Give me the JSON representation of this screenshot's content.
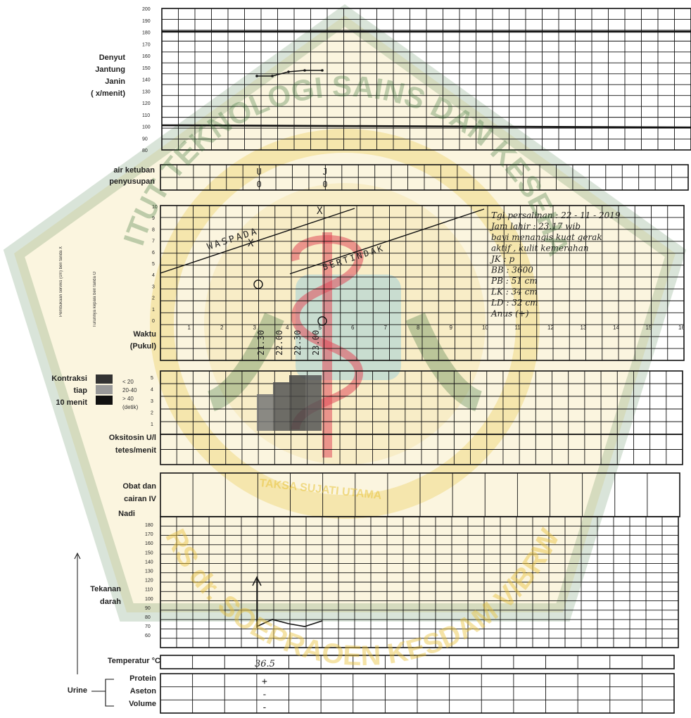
{
  "watermark": {
    "institution": "INSTITUT TEKNOLOGI SAINS DAN KESEHATAN",
    "hospital": "RS dr. SOEPRAOEN KESDAM V/BRW",
    "motto": "TAKSA SUJATI UTAMA",
    "colors": {
      "gold": "#e8c23a",
      "green": "#2f6b2f",
      "red": "#e04a5a",
      "blue": "#4fb4e8"
    }
  },
  "fetal_heart": {
    "label_lines": [
      "Denyut",
      "Jantung",
      "Janin",
      "(    x/menit)"
    ],
    "scale": [
      "200",
      "190",
      "180",
      "170",
      "160",
      "150",
      "140",
      "130",
      "120",
      "110",
      "100",
      "90",
      "80"
    ]
  },
  "amniotic": {
    "rows": [
      "air ketuban",
      "penyusupan"
    ],
    "entries": [
      {
        "col": 6,
        "ketuban": "U",
        "penyusupan": "0"
      },
      {
        "col": 10,
        "ketuban": "J",
        "penyusupan": "0"
      }
    ]
  },
  "cervix": {
    "scale": [
      "10",
      "9",
      "8",
      "7",
      "6",
      "5",
      "4",
      "3",
      "2",
      "1",
      "0"
    ],
    "side_label_1": "Pembukaan serviks (cm) beri tanda X",
    "side_label_2": "Turunnya kepala beri tanda O",
    "alert_line_label": "WASPADA",
    "action_line_label": "BERTINDAK",
    "hour_numbers": [
      "1",
      "2",
      "3",
      "4",
      "5",
      "6",
      "7",
      "8",
      "9",
      "10",
      "11",
      "12",
      "13",
      "14",
      "15",
      "16"
    ],
    "waktu_label": "Waktu",
    "pukul_label": "(Pukul)",
    "times": [
      "21.30",
      "22.00",
      "22.30",
      "23.00"
    ],
    "notes": [
      "Tgl persalinan : 22 - 11 - 2019",
      "Jam lahir : 23.17 wib",
      "bayi menangis kuat gerak",
      "aktif , kulit kemerahan",
      "JK : p",
      "BB : 3600",
      "PB : 51 cm",
      "LK : 34 cm",
      "LD : 32 cm",
      "Anus (+)"
    ]
  },
  "contractions": {
    "label_lines": [
      "Kontraksi",
      "tiap",
      "10 menit"
    ],
    "scale": [
      "5",
      "4",
      "3",
      "2",
      "1"
    ],
    "legend": [
      "< 20",
      "20-40",
      "> 40",
      "(detik)"
    ]
  },
  "oxytocin": {
    "label_lines": [
      "Oksitosin U/l",
      "tetes/menit"
    ]
  },
  "drugs": {
    "label_lines": [
      "Obat dan",
      "cairan IV"
    ]
  },
  "pulse_bp": {
    "nadi_label": "Nadi",
    "bp_label_lines": [
      "Tekanan",
      "darah"
    ],
    "scale": [
      "180",
      "170",
      "160",
      "150",
      "140",
      "130",
      "120",
      "110",
      "100",
      "90",
      "80",
      "70",
      "60"
    ]
  },
  "temperature": {
    "label": "Temperatur  °C",
    "value": "36.5"
  },
  "urine": {
    "label": "Urine",
    "rows": [
      "Protein",
      "Aseton",
      "Volume"
    ],
    "values": [
      "+",
      "-",
      "-"
    ]
  }
}
